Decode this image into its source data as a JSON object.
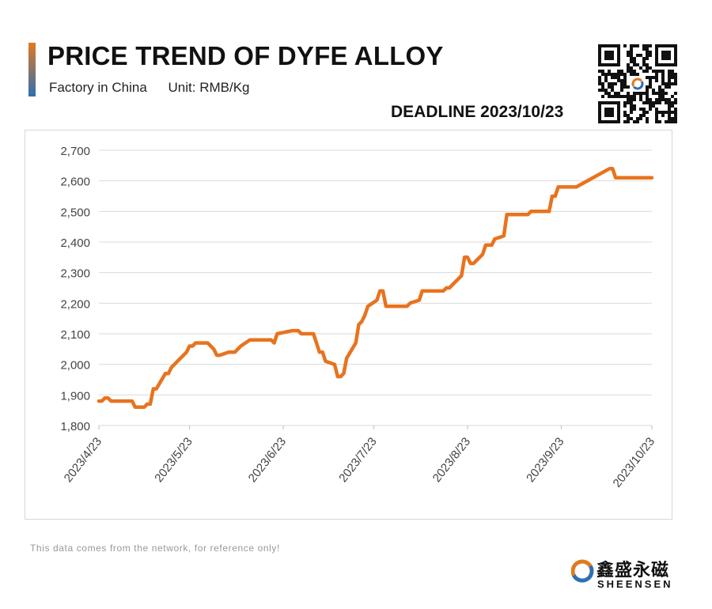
{
  "header": {
    "title": "PRICE TREND OF DYFE ALLOY",
    "factory": "Factory in China",
    "unit": "Unit: RMB/Kg",
    "deadline": "DEADLINE 2023/10/23"
  },
  "footer": {
    "note": "This data comes from the network, for reference only!",
    "logo_cn": "鑫盛永磁",
    "logo_en": "SHEENSEN"
  },
  "colors": {
    "line": "#e8731e",
    "grid": "#d9d9d9",
    "axis_text": "#444444",
    "accent_top": "#e07a20",
    "accent_bottom": "#2f6fb3"
  },
  "icons": [
    "qr-code-icon",
    "sheensen-logo-icon"
  ],
  "chart_data": {
    "type": "line",
    "title": "PRICE TREND OF DYFE ALLOY",
    "xlabel": "",
    "ylabel": "",
    "ylim": [
      1800,
      2700
    ],
    "yticks": [
      1800,
      1900,
      2000,
      2100,
      2200,
      2300,
      2400,
      2500,
      2600,
      2700
    ],
    "ytick_labels": [
      "1,800",
      "1,900",
      "2,000",
      "2,100",
      "2,200",
      "2,300",
      "2,400",
      "2,500",
      "2,600",
      "2,700"
    ],
    "xlim": [
      "2023-04-23",
      "2023-10-23"
    ],
    "xticks": [
      "2023-04-23",
      "2023-05-23",
      "2023-06-23",
      "2023-07-23",
      "2023-08-23",
      "2023-09-23",
      "2023-10-23"
    ],
    "xtick_labels": [
      "2023/4/23",
      "2023/5/23",
      "2023/6/23",
      "2023/7/23",
      "2023/8/23",
      "2023/9/23",
      "2023/10/23"
    ],
    "grid": true,
    "legend": "none",
    "series": [
      {
        "x": [
          "2023-04-23",
          "2023-04-24",
          "2023-04-25",
          "2023-04-26",
          "2023-04-27",
          "2023-05-04",
          "2023-05-05",
          "2023-05-08",
          "2023-05-09",
          "2023-05-10",
          "2023-05-11",
          "2023-05-12",
          "2023-05-15",
          "2023-05-16",
          "2023-05-17",
          "2023-05-18",
          "2023-05-19",
          "2023-05-22",
          "2023-05-23",
          "2023-05-24",
          "2023-05-25",
          "2023-05-26",
          "2023-05-29",
          "2023-05-30",
          "2023-05-31",
          "2023-06-01",
          "2023-06-02",
          "2023-06-05",
          "2023-06-06",
          "2023-06-07",
          "2023-06-08",
          "2023-06-09",
          "2023-06-12",
          "2023-06-13",
          "2023-06-14",
          "2023-06-15",
          "2023-06-16",
          "2023-06-19",
          "2023-06-20",
          "2023-06-21",
          "2023-06-26",
          "2023-06-27",
          "2023-06-28",
          "2023-06-29",
          "2023-06-30",
          "2023-07-03",
          "2023-07-04",
          "2023-07-05",
          "2023-07-06",
          "2023-07-07",
          "2023-07-10",
          "2023-07-11",
          "2023-07-12",
          "2023-07-13",
          "2023-07-14",
          "2023-07-17",
          "2023-07-18",
          "2023-07-19",
          "2023-07-20",
          "2023-07-21",
          "2023-07-24",
          "2023-07-25",
          "2023-07-26",
          "2023-07-27",
          "2023-07-28",
          "2023-07-31",
          "2023-08-01",
          "2023-08-02",
          "2023-08-03",
          "2023-08-04",
          "2023-08-07",
          "2023-08-08",
          "2023-08-09",
          "2023-08-10",
          "2023-08-11",
          "2023-08-14",
          "2023-08-15",
          "2023-08-16",
          "2023-08-17",
          "2023-08-18",
          "2023-08-21",
          "2023-08-22",
          "2023-08-23",
          "2023-08-24",
          "2023-08-25",
          "2023-08-28",
          "2023-08-29",
          "2023-08-30",
          "2023-08-31",
          "2023-09-01",
          "2023-09-04",
          "2023-09-05",
          "2023-09-06",
          "2023-09-07",
          "2023-09-08",
          "2023-09-11",
          "2023-09-12",
          "2023-09-13",
          "2023-09-14",
          "2023-09-15",
          "2023-09-18",
          "2023-09-19",
          "2023-09-20",
          "2023-09-21",
          "2023-09-22",
          "2023-09-25",
          "2023-09-26",
          "2023-09-27",
          "2023-09-28",
          "2023-10-09",
          "2023-10-10",
          "2023-10-11",
          "2023-10-12",
          "2023-10-13",
          "2023-10-16",
          "2023-10-17",
          "2023-10-18",
          "2023-10-19",
          "2023-10-20",
          "2023-10-23"
        ],
        "y": [
          1880,
          1880,
          1890,
          1890,
          1880,
          1880,
          1860,
          1860,
          1870,
          1870,
          1920,
          1920,
          1970,
          1970,
          1990,
          2000,
          2010,
          2040,
          2060,
          2060,
          2070,
          2070,
          2070,
          2060,
          2050,
          2030,
          2030,
          2040,
          2040,
          2040,
          2050,
          2060,
          2080,
          2080,
          2080,
          2080,
          2080,
          2080,
          2070,
          2100,
          2110,
          2110,
          2110,
          2100,
          2100,
          2100,
          2070,
          2040,
          2040,
          2010,
          2000,
          1960,
          1960,
          1970,
          2020,
          2070,
          2130,
          2140,
          2160,
          2190,
          2210,
          2240,
          2240,
          2190,
          2190,
          2190,
          2190,
          2190,
          2190,
          2200,
          2210,
          2240,
          2240,
          2240,
          2240,
          2240,
          2240,
          2250,
          2250,
          2260,
          2290,
          2350,
          2350,
          2330,
          2330,
          2360,
          2390,
          2390,
          2390,
          2410,
          2420,
          2490,
          2490,
          2490,
          2490,
          2490,
          2490,
          2500,
          2500,
          2500,
          2500,
          2500,
          2550,
          2550,
          2580,
          2580,
          2580,
          2580,
          2580,
          2640,
          2640,
          2610,
          2610,
          2610,
          2610,
          2610,
          2610,
          2610,
          2610,
          2610
        ]
      }
    ]
  }
}
